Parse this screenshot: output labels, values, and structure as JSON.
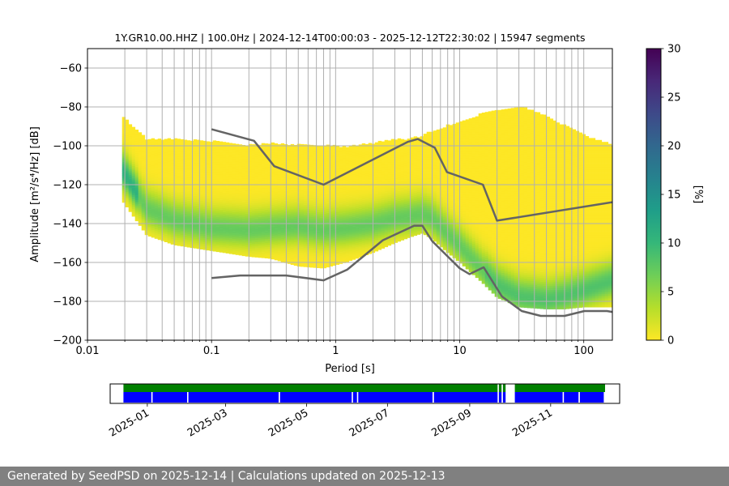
{
  "chart_data": [
    {
      "type": "heatmap",
      "title": "1Y.GR10.00.HHZ | 100.0Hz | 2024-12-14T00:00:03 - 2025-12-12T22:30:02 | 15947 segments",
      "xlabel": "Period [s]",
      "ylabel": "Amplitude [m²/s⁴/Hz] [dB]",
      "x_scale": "log",
      "xlim": [
        0.01,
        170
      ],
      "ylim": [
        -200,
        -50
      ],
      "x_ticks": [
        0.01,
        0.1,
        1,
        10,
        100
      ],
      "x_tick_labels": [
        "0.01",
        "0.1",
        "1",
        "10",
        "100"
      ],
      "y_ticks": [
        -200,
        -180,
        -160,
        -140,
        -120,
        -100,
        -80,
        -60
      ],
      "y_tick_labels": [
        "−200",
        "−180",
        "−160",
        "−140",
        "−120",
        "−100",
        "−80",
        "−60"
      ],
      "grid": true,
      "colorbar": {
        "label": "[%]",
        "range": [
          0,
          30
        ],
        "ticks": [
          0,
          5,
          10,
          15,
          20,
          25,
          30
        ],
        "tick_labels": [
          "0",
          "5",
          "10",
          "15",
          "20",
          "25",
          "30"
        ],
        "colormap": [
          "#fde725",
          "#b5de2b",
          "#6ece58",
          "#35b779",
          "#1f9e89",
          "#26828e",
          "#31688e",
          "#3e4989",
          "#482878",
          "#440154"
        ]
      },
      "density": {
        "period": [
          0.019,
          0.03,
          0.05,
          0.1,
          0.2,
          0.3,
          0.5,
          0.8,
          1.2,
          2,
          3,
          4,
          5,
          6,
          8,
          10,
          15,
          20,
          30,
          50,
          70,
          100,
          170
        ],
        "mode_db": [
          -113,
          -133,
          -139,
          -143,
          -144,
          -143,
          -142,
          -144,
          -143,
          -141,
          -138,
          -137,
          -136,
          -138,
          -146,
          -152,
          -164,
          -172,
          -178,
          -180,
          -178,
          -175,
          -170
        ],
        "upper_db": [
          -85,
          -97,
          -97,
          -98,
          -100,
          -99,
          -100,
          -100,
          -101,
          -99,
          -97,
          -97,
          -95,
          -93,
          -90,
          -88,
          -84,
          -82,
          -80,
          -85,
          -90,
          -95,
          -100
        ],
        "lower_db": [
          -128,
          -146,
          -151,
          -154,
          -157,
          -158,
          -162,
          -163,
          -160,
          -155,
          -150,
          -147,
          -145,
          -148,
          -155,
          -160,
          -170,
          -178,
          -183,
          -184,
          -184,
          -183,
          -183
        ]
      },
      "series": [
        {
          "name": "NHNM",
          "color": "#646464",
          "x": [
            0.1,
            0.22,
            0.32,
            0.8,
            3.8,
            4.6,
            6.3,
            7.9,
            15.4,
            20,
            170
          ],
          "y": [
            -91.5,
            -97.4,
            -110.5,
            -120,
            -98,
            -96.5,
            -101,
            -113.5,
            -120,
            -138.5,
            -129
          ]
        },
        {
          "name": "NLNM",
          "color": "#646464",
          "x": [
            0.1,
            0.17,
            0.4,
            0.8,
            1.24,
            2.4,
            4.3,
            5,
            6,
            10,
            12,
            15.6,
            21.9,
            31.6,
            45,
            70,
            101,
            154,
            170
          ],
          "y": [
            -168,
            -166.7,
            -166.7,
            -169.2,
            -163.7,
            -148.6,
            -141.1,
            -141.1,
            -149,
            -163,
            -166,
            -162.5,
            -177.5,
            -185,
            -187.5,
            -187.5,
            -185,
            -185,
            -185.5
          ]
        }
      ]
    },
    {
      "type": "timeline",
      "x_tick_labels": [
        "2025-01",
        "2025-03",
        "2025-05",
        "2025-07",
        "2025-09",
        "2025-11"
      ],
      "x_tick_dates": [
        "2025-01-01",
        "2025-03-01",
        "2025-05-01",
        "2025-07-01",
        "2025-09-01",
        "2025-11-01"
      ],
      "xlim": [
        "2024-12-04",
        "2025-12-23"
      ],
      "series": [
        {
          "name": "data",
          "color": "#008000",
          "intervals": [
            [
              "2024-12-14",
              "2025-09-22"
            ],
            [
              "2025-09-23",
              "2025-09-25"
            ],
            [
              "2025-09-26",
              "2025-09-28"
            ],
            [
              "2025-10-05",
              "2025-12-12"
            ]
          ]
        },
        {
          "name": "psd",
          "color": "#0000ff",
          "intervals": [
            [
              "2024-12-14",
              "2025-01-04"
            ],
            [
              "2025-01-05",
              "2025-01-31"
            ],
            [
              "2025-02-01",
              "2025-04-10"
            ],
            [
              "2025-04-11",
              "2025-06-04"
            ],
            [
              "2025-06-05",
              "2025-06-08"
            ],
            [
              "2025-06-09",
              "2025-08-04"
            ],
            [
              "2025-08-05",
              "2025-09-22"
            ],
            [
              "2025-09-23",
              "2025-09-25"
            ],
            [
              "2025-09-26",
              "2025-09-28"
            ],
            [
              "2025-10-05",
              "2025-11-10"
            ],
            [
              "2025-11-11",
              "2025-11-22"
            ],
            [
              "2025-11-23",
              "2025-12-11"
            ]
          ]
        }
      ]
    }
  ],
  "footer": {
    "text": "Generated by SeedPSD on 2025-12-14 | Calculations updated on 2025-12-13"
  }
}
